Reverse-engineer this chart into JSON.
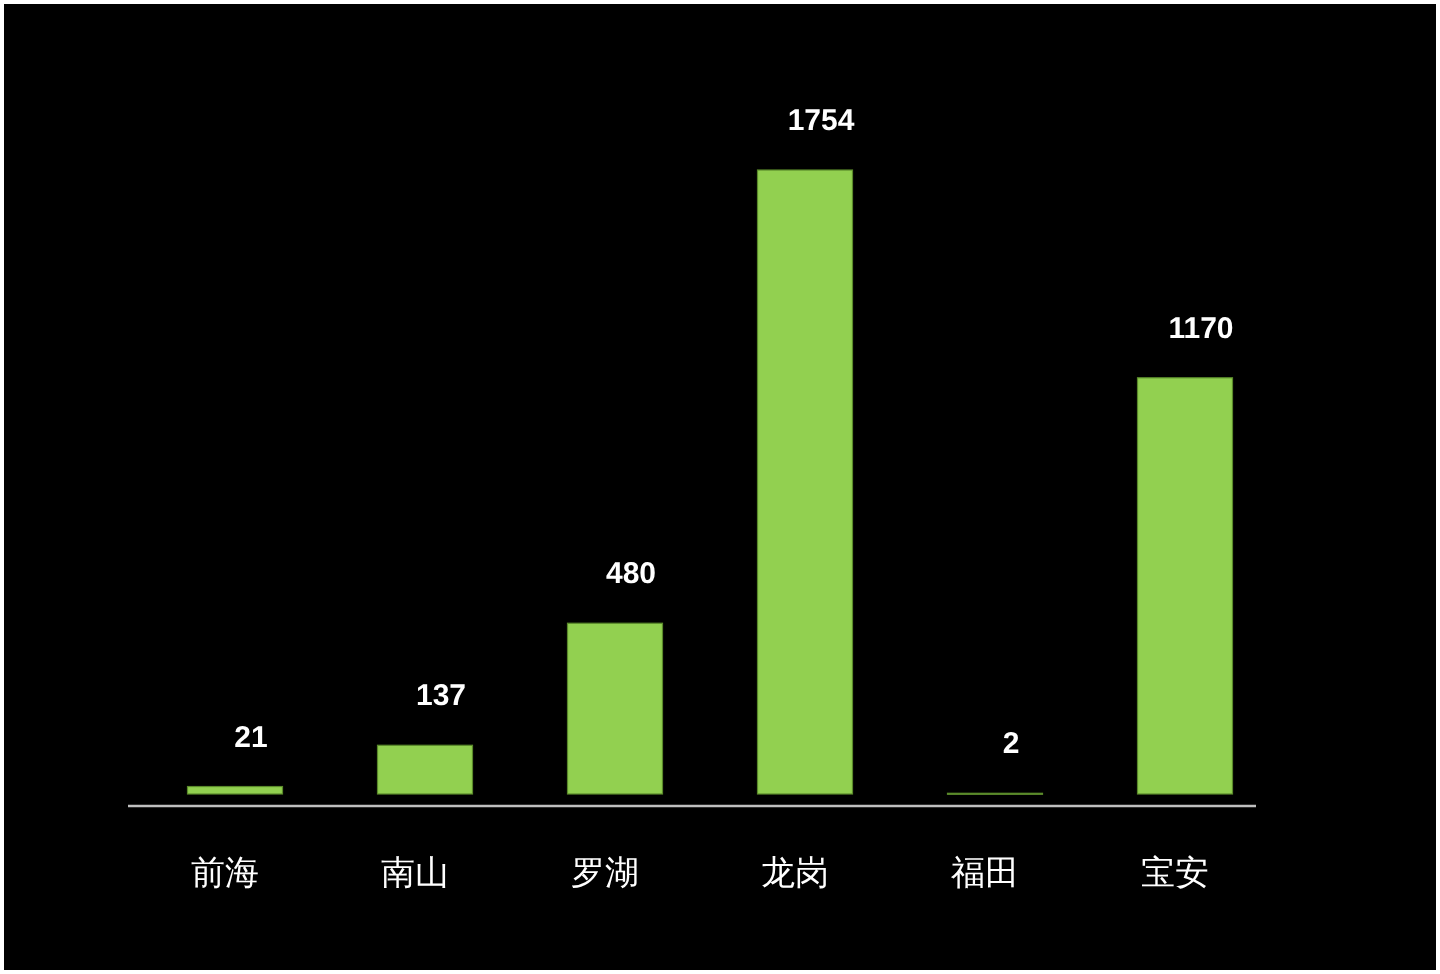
{
  "chart_data": {
    "type": "bar",
    "categories": [
      "前海",
      "南山",
      "罗湖",
      "龙岗",
      "福田",
      "宝安"
    ],
    "values": [
      21,
      137,
      480,
      1754,
      2,
      1170
    ],
    "color": "#92d050",
    "data_labels": true
  }
}
